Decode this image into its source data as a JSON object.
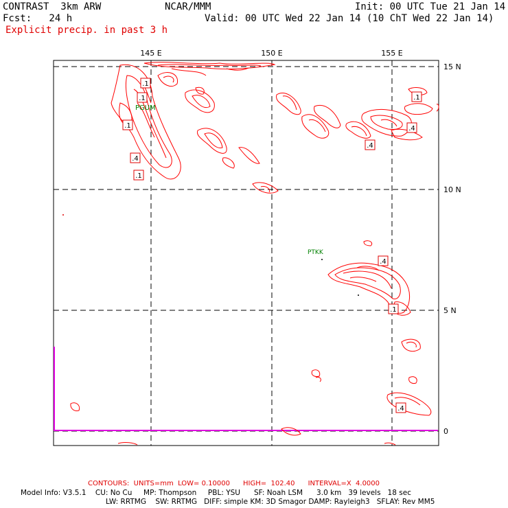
{
  "header": {
    "model": "CONTRAST  3km ARW",
    "center": "NCAR/MMM",
    "init": "Init: 00 UTC Tue 21 Jan 14",
    "fcst": "Fcst:   24 h",
    "valid": "Valid: 00 UTC Wed 22 Jan 14 (10 ChT Wed 22 Jan 14)",
    "field": "Explicit precip. in past 3 h"
  },
  "map": {
    "lon_labels": [
      "145 E",
      "150 E",
      "155 E"
    ],
    "lat_labels": [
      "15 N",
      "10 N",
      "5 N",
      "0"
    ],
    "stations": [
      "PGUM",
      "PTKK"
    ],
    "contour_labels": [
      ".1",
      ".1",
      ".1",
      ".4",
      ".1",
      ".1",
      ".4",
      ".4",
      ".4",
      ".1"
    ],
    "colors": {
      "contour": "#ff0000",
      "station": "#008000",
      "grid": "#000000",
      "magenta": "#e000e0"
    }
  },
  "footer": {
    "contours": "CONTOURS:  UNITS=mm  LOW= 0.10000      HIGH=  102.40      INTERVAL=X  4.0000",
    "model_info_1": "Model Info: V3.5.1    CU: No Cu     MP: Thompson     PBL: YSU      SF: Noah LSM      3.0 km   39 levels   18 sec",
    "model_info_2": "LW: RRTMG    SW: RRTMG   DIFF: simple KM: 3D Smagor DAMP: Rayleigh3   SFLAY: Rev MM5"
  }
}
